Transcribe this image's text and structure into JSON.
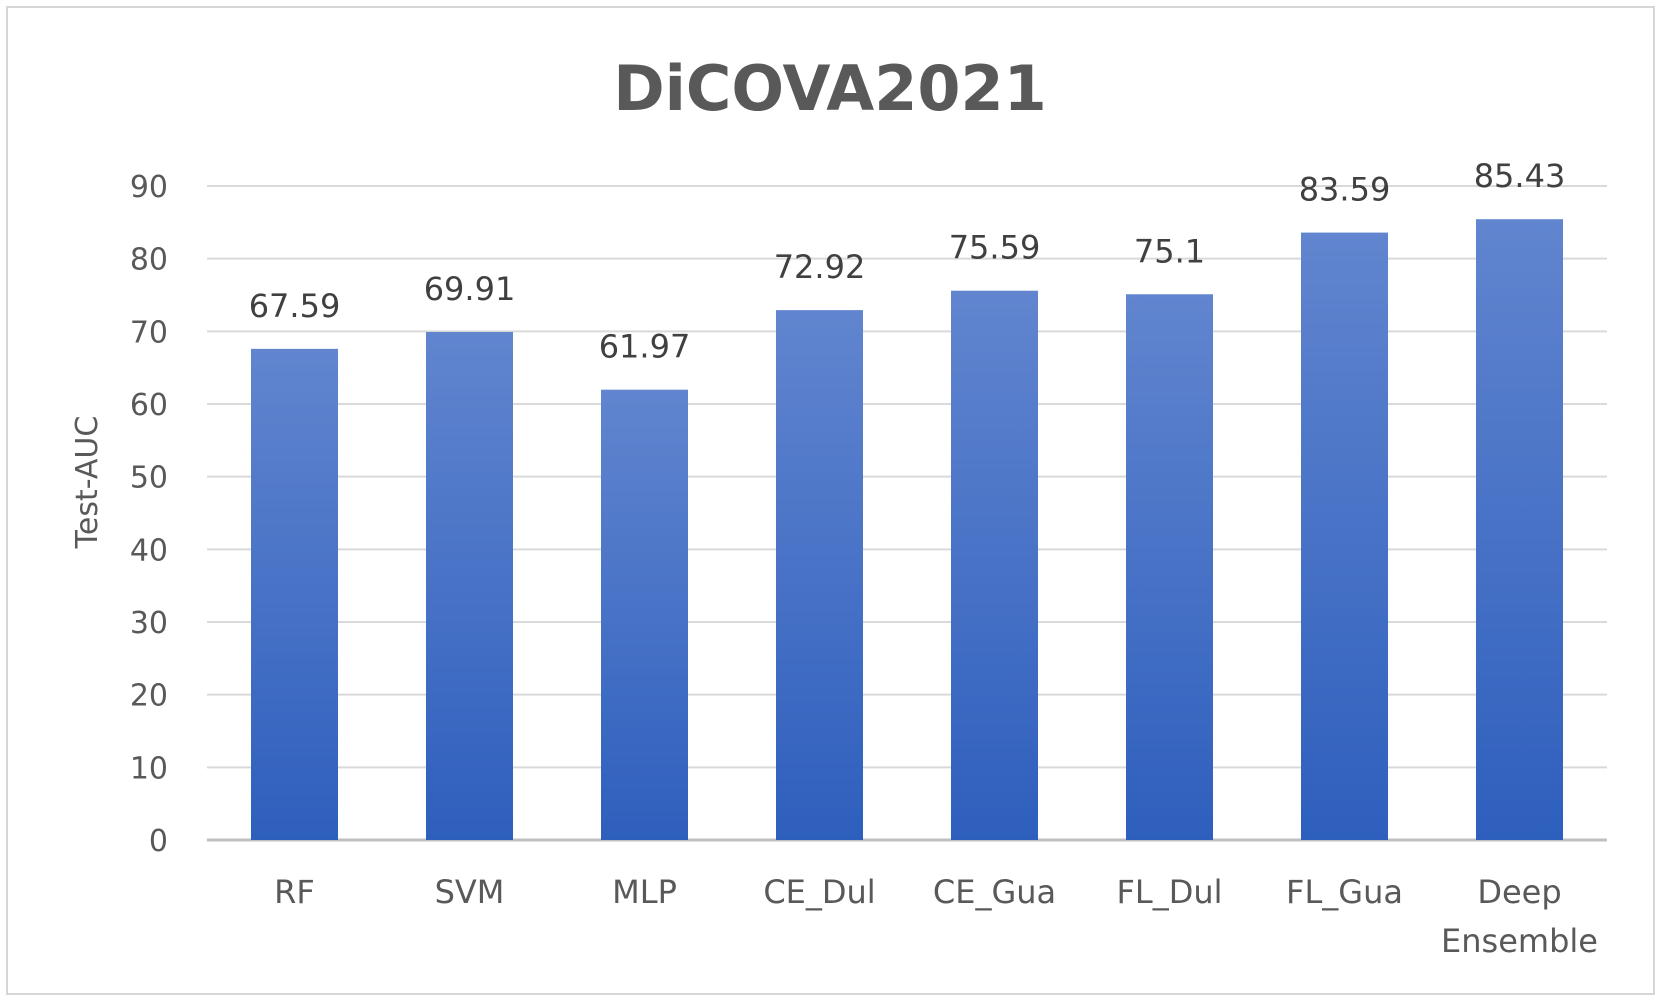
{
  "chart_data": {
    "type": "bar",
    "title": "DiCOVA2021",
    "xlabel": "",
    "ylabel": "Test-AUC",
    "ylim": [
      0,
      90
    ],
    "yticks": [
      0,
      10,
      20,
      30,
      40,
      50,
      60,
      70,
      80,
      90
    ],
    "grid": true,
    "legend": "none",
    "categories": [
      [
        "RF"
      ],
      [
        "SVM"
      ],
      [
        "MLP"
      ],
      [
        "CE_Dul"
      ],
      [
        "CE_Gua"
      ],
      [
        "FL_Dul"
      ],
      [
        "FL_Gua"
      ],
      [
        "Deep",
        "Ensemble"
      ]
    ],
    "values": [
      67.59,
      69.91,
      61.97,
      72.92,
      75.59,
      75.1,
      83.59,
      85.43
    ],
    "value_labels": [
      "67.59",
      "69.91",
      "61.97",
      "72.92",
      "75.59",
      "75.1",
      "83.59",
      "85.43"
    ],
    "colors": {
      "bar_top": "#6185cf",
      "bar_bottom": "#2e5fbd",
      "grid": "#d9d9d9",
      "axis": "#bfbfbf"
    }
  }
}
